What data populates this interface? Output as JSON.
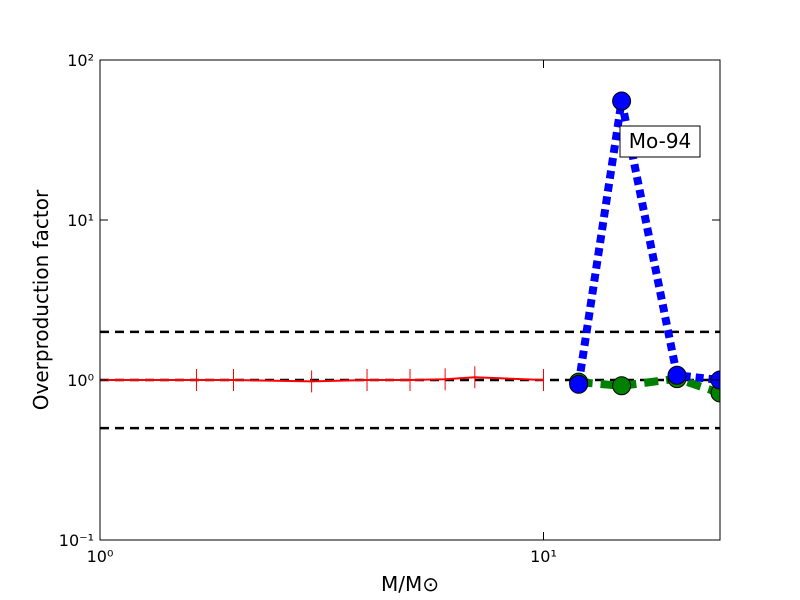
{
  "chart_data": {
    "type": "line",
    "xlabel": "M/M⊙",
    "ylabel": "Overproduction factor",
    "xscale": "log",
    "yscale": "log",
    "xlim": [
      1,
      25
    ],
    "ylim": [
      0.1,
      100
    ],
    "xticks": [
      {
        "value": 1,
        "label": "10⁰"
      },
      {
        "value": 10,
        "label": "10¹"
      }
    ],
    "yticks": [
      {
        "value": 0.1,
        "label": "10⁻¹"
      },
      {
        "value": 1,
        "label": "10⁰"
      },
      {
        "value": 10,
        "label": "10¹"
      },
      {
        "value": 100,
        "label": "10²"
      }
    ],
    "hlines": [
      2,
      1,
      0.5
    ],
    "hline_color": "#000000",
    "annotations": [
      "Mo-94"
    ],
    "series": [
      {
        "color": "#ff0000",
        "linestyle": "solid",
        "marker": "|",
        "x": [
          1,
          1.65,
          2,
          3,
          4,
          5,
          6,
          7,
          10
        ],
        "values": [
          1,
          1,
          1,
          0.98,
          1,
          1,
          1.01,
          1.04,
          1
        ]
      },
      {
        "color": "#008000",
        "linestyle": "dashed",
        "marker": "o",
        "x": [
          12,
          15,
          20,
          25
        ],
        "values": [
          0.97,
          0.92,
          1.02,
          0.83
        ]
      },
      {
        "color": "#0000ff",
        "linestyle": "dotted",
        "marker": "o",
        "x": [
          12,
          15,
          20,
          25
        ],
        "values": [
          0.94,
          55.4,
          1.07,
          1.0
        ]
      }
    ]
  }
}
